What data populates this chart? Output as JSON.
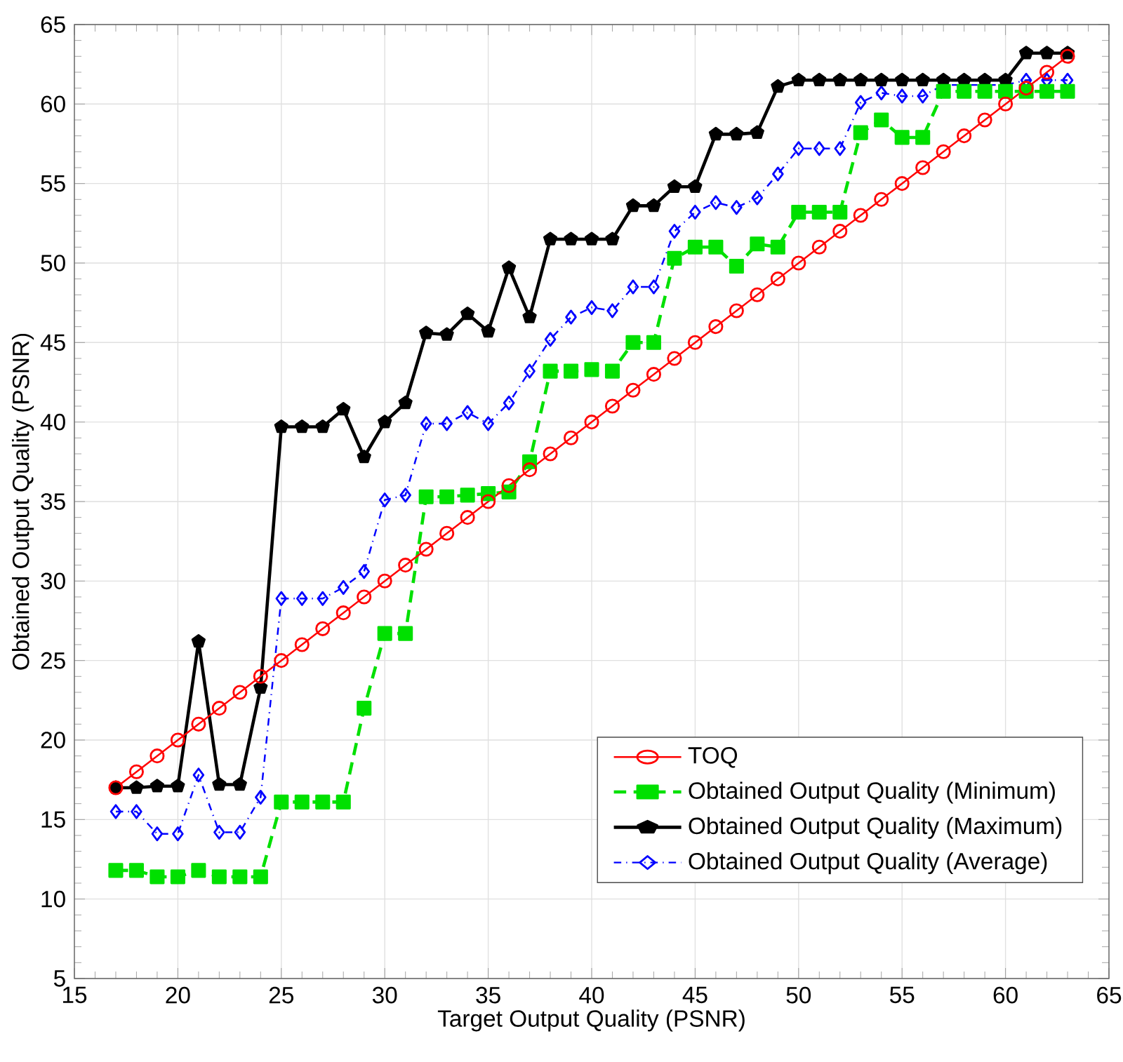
{
  "chart_data": {
    "type": "line",
    "xlabel": "Target Output Quality (PSNR)",
    "ylabel": "Obtained Output Quality (PSNR)",
    "x": [
      17,
      18,
      19,
      20,
      21,
      22,
      23,
      24,
      25,
      26,
      27,
      28,
      29,
      30,
      31,
      32,
      33,
      34,
      35,
      36,
      37,
      38,
      39,
      40,
      41,
      42,
      43,
      44,
      45,
      46,
      47,
      48,
      49,
      50,
      51,
      52,
      53,
      54,
      55,
      56,
      57,
      58,
      59,
      60,
      61,
      62,
      63
    ],
    "series": [
      {
        "name": "TOQ",
        "color": "#ff0000",
        "marker": "circle",
        "line_style": "solid",
        "values": [
          17,
          18,
          19,
          20,
          21,
          22,
          23,
          24,
          25,
          26,
          27,
          28,
          29,
          30,
          31,
          32,
          33,
          34,
          35,
          36,
          37,
          38,
          39,
          40,
          41,
          42,
          43,
          44,
          45,
          46,
          47,
          48,
          49,
          50,
          51,
          52,
          53,
          54,
          55,
          56,
          57,
          58,
          59,
          60,
          61,
          62,
          63
        ]
      },
      {
        "name": "Obtained Output Quality (Minimum)",
        "color": "#00e000",
        "marker": "square",
        "line_style": "dashed",
        "values": [
          11.8,
          11.8,
          11.4,
          11.4,
          11.8,
          11.4,
          11.4,
          11.4,
          16.1,
          16.1,
          16.1,
          16.1,
          22,
          26.7,
          26.7,
          35.3,
          35.3,
          35.4,
          35.5,
          35.6,
          37.5,
          43.2,
          43.2,
          43.3,
          43.2,
          45,
          45,
          50.3,
          51,
          51,
          49.8,
          51.2,
          51,
          53.2,
          53.2,
          53.2,
          58.2,
          59,
          57.9,
          57.9,
          60.8,
          60.8,
          60.8,
          60.8,
          60.8,
          60.8,
          60.8
        ]
      },
      {
        "name": "Obtained Output Quality (Maximum)",
        "color": "#000000",
        "marker": "star",
        "line_style": "solid",
        "values": [
          17,
          17,
          17.1,
          17.1,
          26.2,
          17.2,
          17.2,
          23.3,
          39.7,
          39.7,
          39.7,
          40.8,
          37.8,
          40,
          41.2,
          45.6,
          45.5,
          46.8,
          45.7,
          49.7,
          46.6,
          51.5,
          51.5,
          51.5,
          51.5,
          53.6,
          53.6,
          54.8,
          54.8,
          58.1,
          58.1,
          58.2,
          61.1,
          61.5,
          61.5,
          61.5,
          61.5,
          61.5,
          61.5,
          61.5,
          61.5,
          61.5,
          61.5,
          61.5,
          63.2,
          63.2,
          63.2
        ]
      },
      {
        "name": "Obtained Output Quality (Average)",
        "color": "#0000ff",
        "marker": "diamond",
        "line_style": "dashdot",
        "values": [
          15.5,
          15.5,
          14.1,
          14.1,
          17.8,
          14.2,
          14.2,
          16.4,
          28.9,
          28.9,
          28.9,
          29.6,
          30.6,
          35.1,
          35.4,
          39.9,
          39.9,
          40.6,
          39.9,
          41.2,
          43.2,
          45.2,
          46.6,
          47.2,
          47,
          48.5,
          48.5,
          52,
          53.2,
          53.8,
          53.5,
          54.1,
          55.6,
          57.2,
          57.2,
          57.2,
          60.1,
          60.7,
          60.5,
          60.5,
          61.2,
          61.2,
          61.2,
          61.2,
          61.5,
          61.5,
          61.5
        ]
      }
    ],
    "xlim": [
      15,
      65
    ],
    "xticks": [
      15,
      20,
      25,
      30,
      35,
      40,
      45,
      50,
      55,
      60,
      65
    ],
    "ylim": [
      5,
      65
    ],
    "yticks": [
      5,
      10,
      15,
      20,
      25,
      30,
      35,
      40,
      45,
      50,
      55,
      60,
      65
    ],
    "grid": true,
    "legend": "bottom right"
  }
}
